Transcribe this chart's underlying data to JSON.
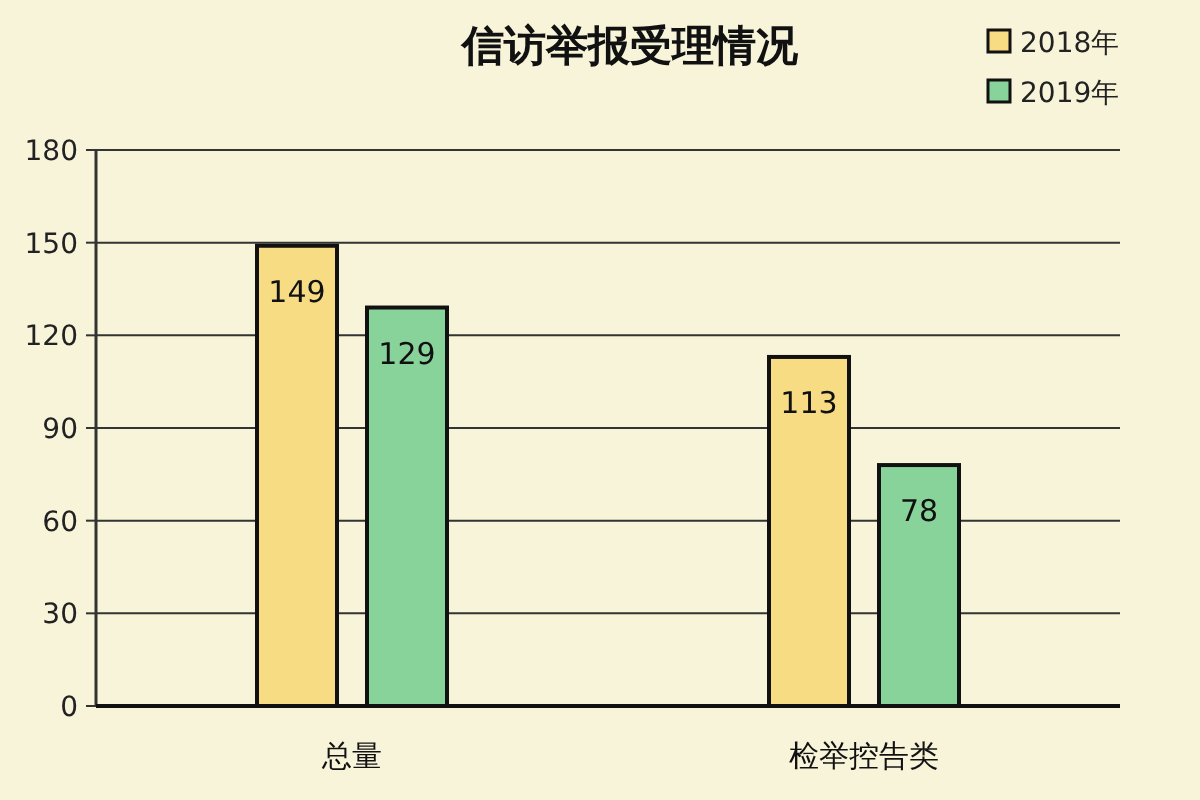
{
  "chart_data": {
    "type": "bar",
    "title": "信访举报受理情况",
    "categories": [
      "总量",
      "检举控告类"
    ],
    "series": [
      {
        "name": "2018年",
        "color": "#f7dc84",
        "values": [
          149,
          113
        ]
      },
      {
        "name": "2019年",
        "color": "#88d39a",
        "values": [
          129,
          78
        ]
      }
    ],
    "ylim": [
      0,
      180
    ],
    "yticks": [
      0,
      30,
      60,
      90,
      120,
      150,
      180
    ],
    "grid": "y",
    "legend": "top right",
    "data_labels": true
  }
}
